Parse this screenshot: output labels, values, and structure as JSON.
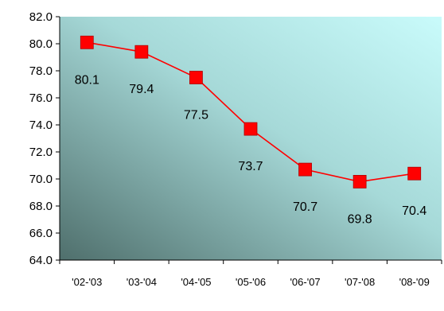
{
  "chart_data": {
    "type": "line",
    "title": "",
    "xlabel": "",
    "ylabel": "",
    "categories": [
      "'02-'03",
      "'03-'04",
      "'04-'05",
      "'05-'06",
      "'06-'07",
      "'07-'08",
      "'08-'09"
    ],
    "series": [
      {
        "values": [
          80.1,
          79.4,
          77.5,
          73.7,
          70.7,
          69.8,
          70.4
        ],
        "data_labels": [
          "80.1",
          "79.4",
          "77.5",
          "73.7",
          "70.7",
          "69.8",
          "70.4"
        ]
      }
    ],
    "ylim": [
      64.0,
      82.0
    ],
    "yticks": [
      "64.0",
      "66.0",
      "68.0",
      "70.0",
      "72.0",
      "74.0",
      "76.0",
      "78.0",
      "80.0",
      "82.0"
    ],
    "grid": false,
    "legend": "none",
    "colors": {
      "line": "#ff0000",
      "marker": "#ff0000",
      "plot_bg_dark": "#4f6f6c",
      "plot_bg_light": "#c9fbfb"
    }
  }
}
